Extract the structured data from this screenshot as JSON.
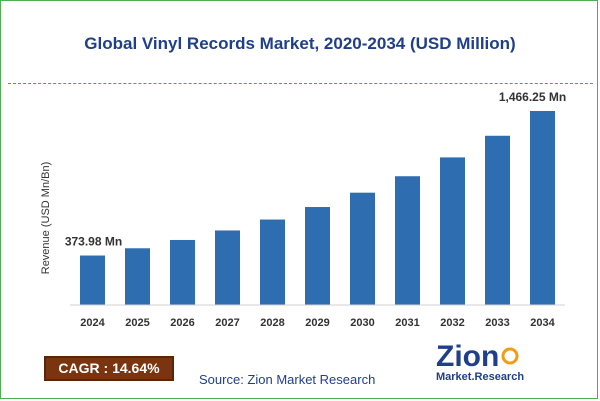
{
  "header": {
    "title": "Global Vinyl Records Market, 2020-2034 (USD Million)"
  },
  "chart_data": {
    "type": "bar",
    "categories": [
      "2024",
      "2025",
      "2026",
      "2027",
      "2028",
      "2029",
      "2030",
      "2031",
      "2032",
      "2033",
      "2034"
    ],
    "values": [
      373.98,
      428.73,
      491.49,
      563.44,
      645.93,
      740.49,
      848.89,
      973.16,
      1115.63,
      1279.04,
      1466.25
    ],
    "data_labels": {
      "first": "373.98 Mn",
      "last": "1,466.25 Mn"
    },
    "ylabel": "Revenue (USD Mn/Bn)",
    "xlabel": "",
    "ylim": [
      0,
      1550
    ],
    "bar_color": "#2e6daf",
    "grid": false
  },
  "footer": {
    "cagr": "CAGR : 14.64%",
    "source": "Source: Zion Market Research",
    "logo_text": "Zion",
    "logo_subtext": "Market.Research"
  }
}
